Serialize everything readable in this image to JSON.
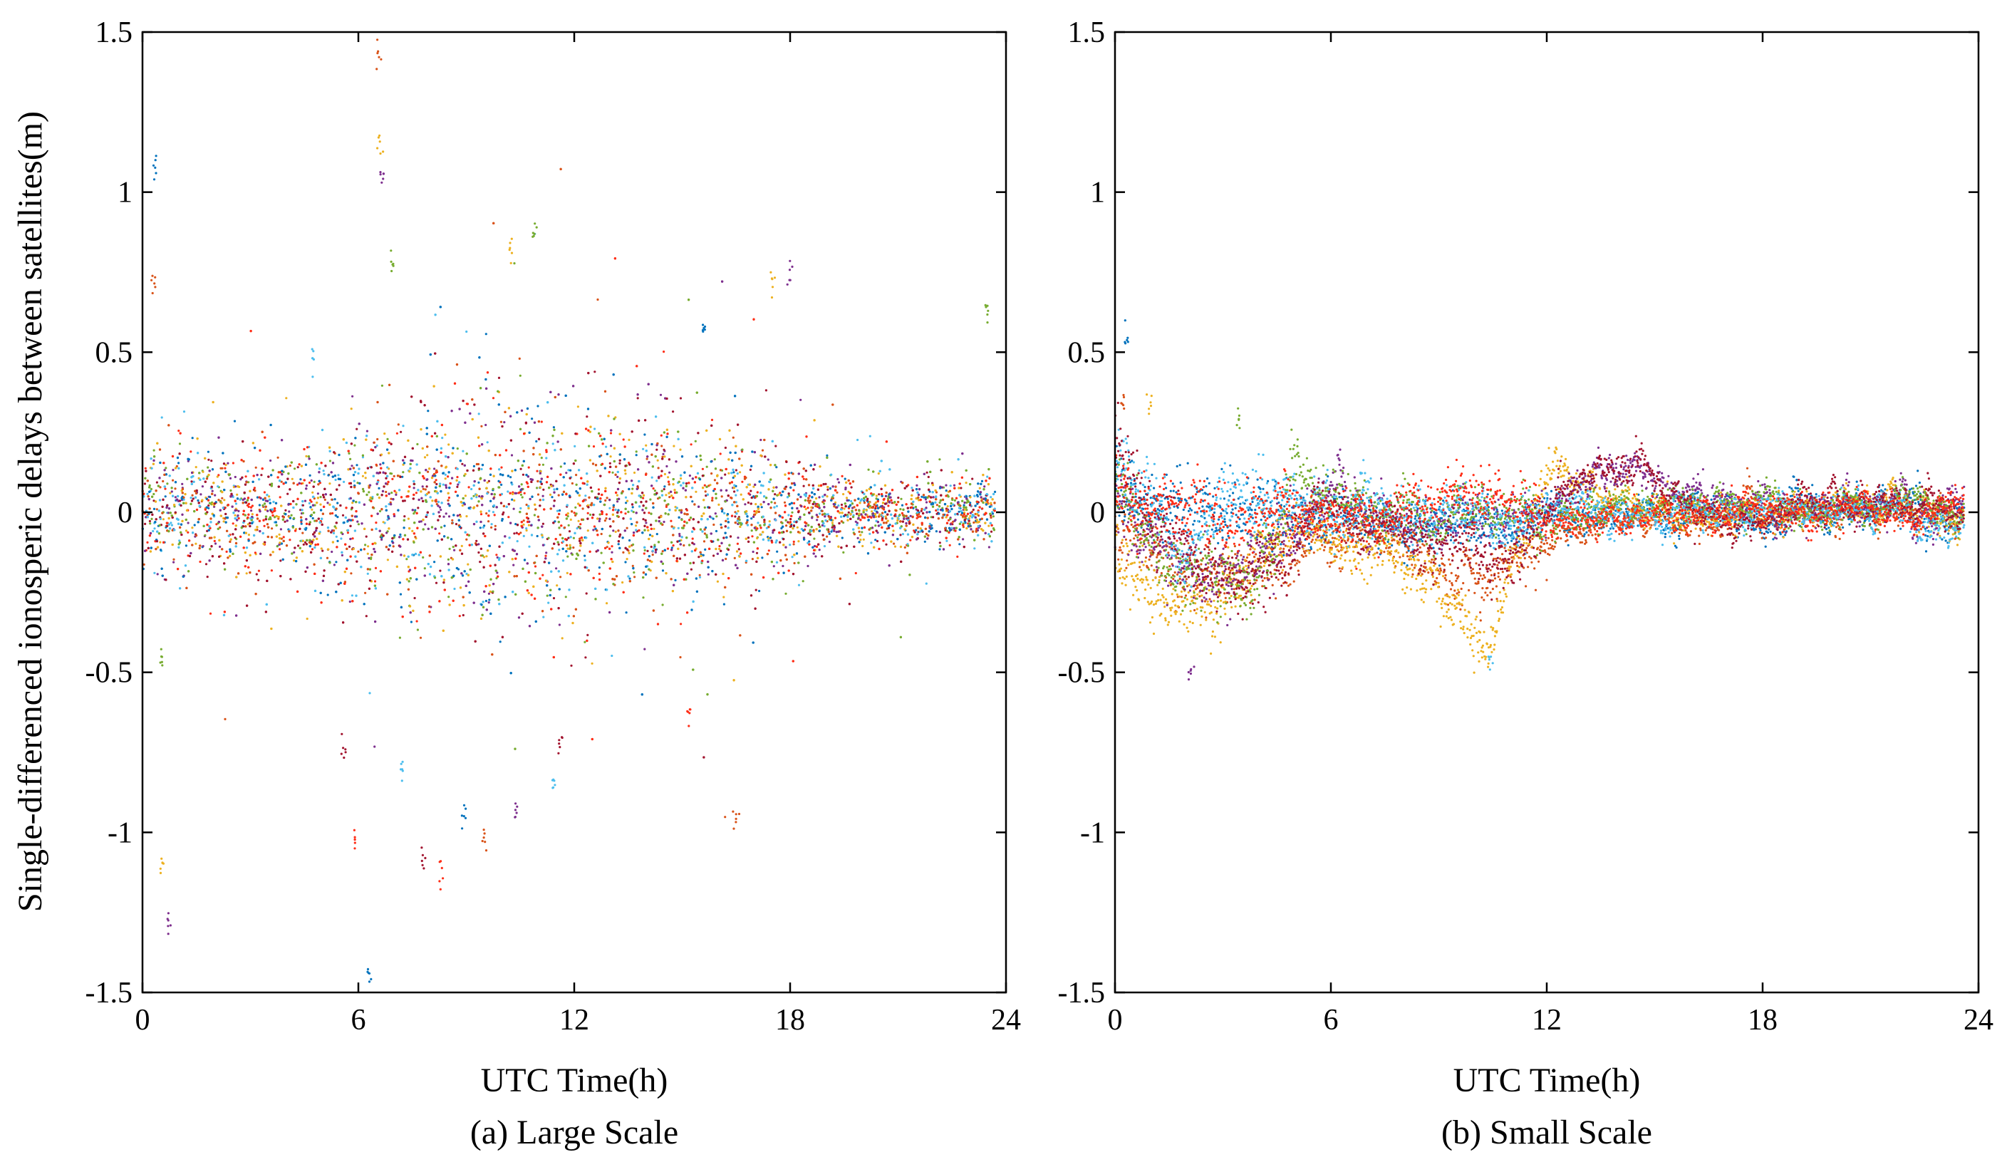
{
  "chart_data": [
    {
      "type": "scatter",
      "panel": "a",
      "caption": "(a) Large Scale",
      "xlabel": "UTC Time(h)",
      "ylabel": "Single-differenced ionosperic delays between satellites(m)",
      "xlim": [
        0,
        24
      ],
      "ylim": [
        -1.5,
        1.5
      ],
      "xticks": [
        "0",
        "6",
        "12",
        "18",
        "24"
      ],
      "yticks": [
        "1.5",
        "1",
        "0.5",
        "0",
        "-0.5",
        "-1",
        "-1.5"
      ],
      "grid": false,
      "marker": "dot",
      "noise": {
        "base_std_m": [
          [
            0,
            0.09
          ],
          [
            5,
            0.1
          ],
          [
            6,
            0.14
          ],
          [
            10,
            0.17
          ],
          [
            14,
            0.15
          ],
          [
            18,
            0.09
          ],
          [
            20,
            0.05
          ],
          [
            24,
            0.05
          ]
        ],
        "note": "dense colored dot scatter of many satellite pairs centered on 0 m"
      },
      "series_notable_points": [
        {
          "x": 0.35,
          "y": 1.07
        },
        {
          "x": 0.3,
          "y": 0.72
        },
        {
          "x": 0.55,
          "y": -1.1
        },
        {
          "x": 0.7,
          "y": -1.27
        },
        {
          "x": 0.5,
          "y": -0.47
        },
        {
          "x": 4.7,
          "y": 0.47
        },
        {
          "x": 5.6,
          "y": -0.75
        },
        {
          "x": 5.9,
          "y": -1.03
        },
        {
          "x": 6.3,
          "y": -1.45
        },
        {
          "x": 6.55,
          "y": 1.42
        },
        {
          "x": 6.6,
          "y": 1.15
        },
        {
          "x": 6.65,
          "y": 1.03
        },
        {
          "x": 6.9,
          "y": 0.78
        },
        {
          "x": 7.2,
          "y": -0.8
        },
        {
          "x": 7.8,
          "y": -1.1
        },
        {
          "x": 8.3,
          "y": -1.13
        },
        {
          "x": 8.9,
          "y": -0.95
        },
        {
          "x": 9.5,
          "y": -1.02
        },
        {
          "x": 10.2,
          "y": 0.83
        },
        {
          "x": 10.4,
          "y": -0.93
        },
        {
          "x": 10.9,
          "y": 0.86
        },
        {
          "x": 11.4,
          "y": -0.85
        },
        {
          "x": 11.6,
          "y": -0.72
        },
        {
          "x": 15.2,
          "y": -0.63
        },
        {
          "x": 15.6,
          "y": 0.58
        },
        {
          "x": 16.5,
          "y": -0.94
        },
        {
          "x": 17.5,
          "y": 0.72
        },
        {
          "x": 18.0,
          "y": 0.74
        },
        {
          "x": 23.5,
          "y": 0.62
        }
      ]
    },
    {
      "type": "scatter",
      "panel": "b",
      "caption": "(b) Small Scale",
      "xlabel": "UTC Time(h)",
      "ylabel": "",
      "xlim": [
        0,
        24
      ],
      "ylim": [
        -1.5,
        1.5
      ],
      "xticks": [
        "0",
        "6",
        "12",
        "18",
        "24"
      ],
      "yticks": [
        "1.5",
        "1",
        "0.5",
        "0",
        "-0.5",
        "-1",
        "-1.5"
      ],
      "grid": false,
      "marker": "dot",
      "series_profiles": [
        {
          "name": "s1",
          "color": "#0072BD",
          "points": [
            [
              0,
              0.05
            ],
            [
              2,
              0.05
            ],
            [
              3,
              0.02
            ],
            [
              6,
              -0.03
            ],
            [
              9,
              -0.05
            ],
            [
              12,
              -0.02
            ],
            [
              16,
              0.01
            ],
            [
              20,
              0.0
            ],
            [
              24,
              0.0
            ]
          ]
        },
        {
          "name": "s2",
          "color": "#D95319",
          "points": [
            [
              0,
              -0.05
            ],
            [
              1,
              -0.15
            ],
            [
              2,
              -0.2
            ],
            [
              4,
              -0.18
            ],
            [
              6,
              -0.05
            ],
            [
              8,
              -0.1
            ],
            [
              10,
              -0.25
            ],
            [
              11.5,
              -0.12
            ],
            [
              13,
              -0.05
            ],
            [
              16,
              -0.02
            ],
            [
              20,
              0.0
            ],
            [
              24,
              0.0
            ]
          ]
        },
        {
          "name": "s3",
          "color": "#EDB120",
          "points": [
            [
              0,
              -0.1
            ],
            [
              1,
              -0.25
            ],
            [
              2,
              -0.3
            ],
            [
              3,
              -0.25
            ],
            [
              5,
              -0.05
            ],
            [
              8,
              -0.15
            ],
            [
              9.5,
              -0.3
            ],
            [
              10.4,
              -0.45
            ],
            [
              11,
              -0.2
            ],
            [
              12.2,
              0.17
            ],
            [
              13,
              0.05
            ],
            [
              16,
              0.0
            ],
            [
              24,
              0.0
            ]
          ]
        },
        {
          "name": "s4",
          "color": "#7E2F8E",
          "points": [
            [
              0,
              0.0
            ],
            [
              1.5,
              -0.12
            ],
            [
              3,
              -0.18
            ],
            [
              4.5,
              -0.1
            ],
            [
              6,
              0.05
            ],
            [
              8,
              -0.05
            ],
            [
              12,
              0.0
            ],
            [
              13,
              0.1
            ],
            [
              14,
              0.15
            ],
            [
              16,
              0.05
            ],
            [
              20,
              0.0
            ],
            [
              24,
              0.0
            ]
          ]
        },
        {
          "name": "s5",
          "color": "#77AC30",
          "points": [
            [
              0,
              0.1
            ],
            [
              1,
              -0.1
            ],
            [
              2,
              -0.22
            ],
            [
              3.5,
              -0.2
            ],
            [
              4.5,
              -0.1
            ],
            [
              5,
              0.18
            ],
            [
              5.5,
              0.1
            ],
            [
              7,
              0.0
            ],
            [
              10,
              -0.02
            ],
            [
              14,
              0.02
            ],
            [
              18,
              0.02
            ],
            [
              24,
              0.02
            ]
          ]
        },
        {
          "name": "s6",
          "color": "#4DBEEE",
          "points": [
            [
              0,
              0.15
            ],
            [
              1,
              0.05
            ],
            [
              2,
              -0.15
            ],
            [
              3,
              0.05
            ],
            [
              5,
              0.02
            ],
            [
              8,
              0.0
            ],
            [
              12,
              -0.02
            ],
            [
              16,
              0.0
            ],
            [
              20,
              0.0
            ],
            [
              24,
              -0.05
            ]
          ]
        },
        {
          "name": "s7",
          "color": "#A2142F",
          "points": [
            [
              0,
              0.2
            ],
            [
              1,
              0.0
            ],
            [
              2,
              -0.1
            ],
            [
              3.5,
              -0.25
            ],
            [
              4.5,
              -0.15
            ],
            [
              6,
              0.0
            ],
            [
              9,
              -0.1
            ],
            [
              11,
              -0.15
            ],
            [
              13,
              0.12
            ],
            [
              14.5,
              0.15
            ],
            [
              17,
              -0.05
            ],
            [
              20,
              0.02
            ],
            [
              24,
              0.0
            ]
          ]
        },
        {
          "name": "s8",
          "color": "#FF2E17",
          "points": [
            [
              0,
              0.05
            ],
            [
              3,
              0.0
            ],
            [
              6,
              0.0
            ],
            [
              9,
              0.05
            ],
            [
              12,
              0.0
            ],
            [
              15,
              0.0
            ],
            [
              18,
              0.0
            ],
            [
              21,
              0.0
            ],
            [
              24,
              0.0
            ]
          ]
        }
      ],
      "series_notable_points": [
        {
          "x": 0.3,
          "y": 0.55
        },
        {
          "x": 0.2,
          "y": 0.35
        },
        {
          "x": 1.0,
          "y": 0.35
        },
        {
          "x": 2.1,
          "y": -0.5
        },
        {
          "x": 3.4,
          "y": 0.3
        },
        {
          "x": 10.4,
          "y": -0.47
        }
      ]
    }
  ]
}
